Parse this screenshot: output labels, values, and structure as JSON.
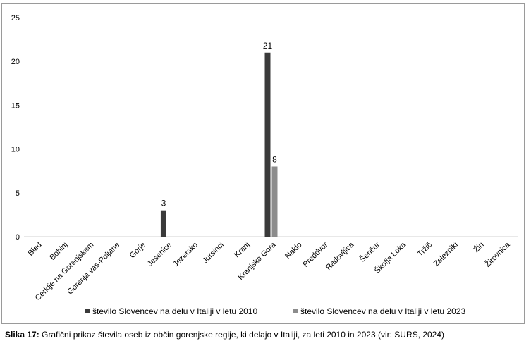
{
  "chart_data": {
    "type": "bar",
    "categories": [
      "Bled",
      "Bohinj",
      "Cerklje na Gorenjskem",
      "Gorenja vas-Poljane",
      "Gorje",
      "Jesenice",
      "Jezersko",
      "Jursinci",
      "Kranj",
      "Kranjska Gora",
      "Naklo",
      "Preddvor",
      "Radovljica",
      "Šenčur",
      "Škofja Loka",
      "Tržič",
      "Železniki",
      "Žiri",
      "Žirovnica"
    ],
    "series": [
      {
        "name": "število Slovencev na delu v Italiji v letu 2010",
        "color": "#3a3a3a",
        "values": [
          0,
          0,
          0,
          0,
          0,
          3,
          0,
          0,
          0,
          21,
          0,
          0,
          0,
          0,
          0,
          0,
          0,
          0,
          0
        ]
      },
      {
        "name": "število Slovencev na delu v Italiji v letu 2023",
        "color": "#8c8c8c",
        "values": [
          0,
          0,
          0,
          0,
          0,
          0,
          0,
          0,
          0,
          8,
          0,
          0,
          0,
          0,
          0,
          0,
          0,
          0,
          0
        ]
      }
    ],
    "yticks": [
      "0",
      "5",
      "10",
      "15",
      "20",
      "25"
    ],
    "ylim": [
      0,
      25
    ],
    "data_labels": [
      {
        "series": 0,
        "category": 5,
        "text": "3"
      },
      {
        "series": 0,
        "category": 9,
        "text": "21"
      },
      {
        "series": 1,
        "category": 9,
        "text": "8"
      }
    ],
    "legend_position": "bottom",
    "grid": false
  },
  "caption": {
    "label": "Slika 17:",
    "text": " Grafični prikaz števila oseb iz občin gorenjske regije, ki delajo v Italiji, za leti 2010 in 2023 (vir: SURS, 2024)"
  }
}
